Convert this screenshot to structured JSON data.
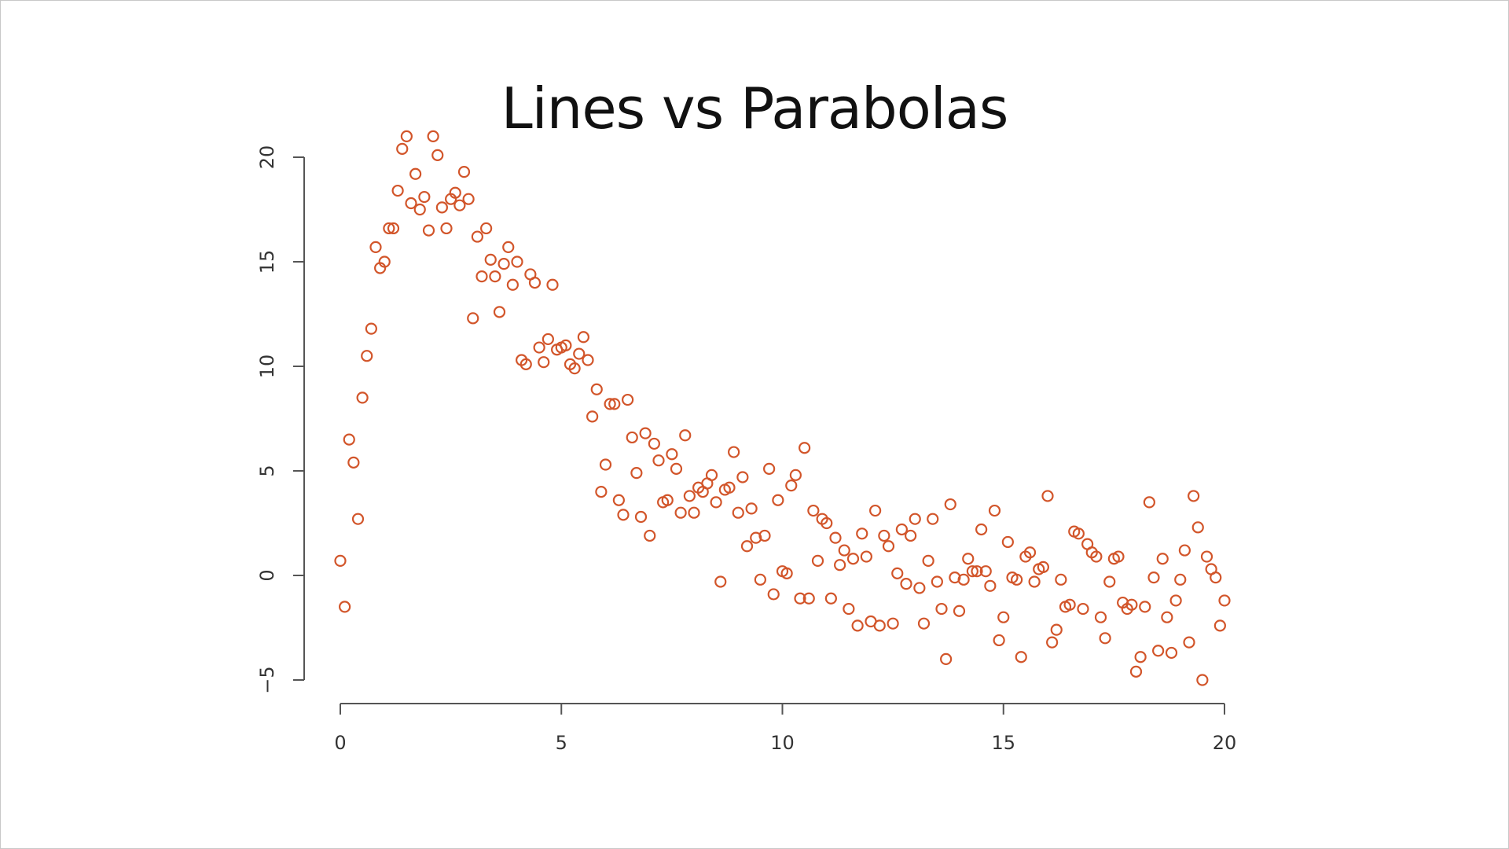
{
  "chart_data": {
    "type": "scatter",
    "title": "Lines vs Parabolas",
    "xlabel": "",
    "ylabel": "",
    "xlim": [
      0,
      20
    ],
    "ylim": [
      -5,
      20
    ],
    "x_ticks": [
      "0",
      "5",
      "10",
      "15",
      "20"
    ],
    "y_ticks": [
      "-5",
      "0",
      "5",
      "10",
      "15",
      "20"
    ],
    "grid": false,
    "marker_color": "#D2552A",
    "series": [
      {
        "points": [
          [
            0.0,
            0.7
          ],
          [
            0.1,
            -1.5
          ],
          [
            0.2,
            6.5
          ],
          [
            0.3,
            5.4
          ],
          [
            0.4,
            2.7
          ],
          [
            0.5,
            8.5
          ],
          [
            0.6,
            10.5
          ],
          [
            0.7,
            11.8
          ],
          [
            0.8,
            15.7
          ],
          [
            0.9,
            14.7
          ],
          [
            1.0,
            15.0
          ],
          [
            1.1,
            16.6
          ],
          [
            1.2,
            16.6
          ],
          [
            1.3,
            18.4
          ],
          [
            1.4,
            20.4
          ],
          [
            1.5,
            21.0
          ],
          [
            1.6,
            17.8
          ],
          [
            1.7,
            19.2
          ],
          [
            1.8,
            17.5
          ],
          [
            1.9,
            18.1
          ],
          [
            2.0,
            16.5
          ],
          [
            2.1,
            21.0
          ],
          [
            2.2,
            20.1
          ],
          [
            2.3,
            17.6
          ],
          [
            2.4,
            16.6
          ],
          [
            2.5,
            18.0
          ],
          [
            2.6,
            18.3
          ],
          [
            2.7,
            17.7
          ],
          [
            2.8,
            19.3
          ],
          [
            2.9,
            18.0
          ],
          [
            3.0,
            12.3
          ],
          [
            3.1,
            16.2
          ],
          [
            3.2,
            14.3
          ],
          [
            3.3,
            16.6
          ],
          [
            3.4,
            15.1
          ],
          [
            3.5,
            14.3
          ],
          [
            3.6,
            12.6
          ],
          [
            3.7,
            14.9
          ],
          [
            3.8,
            15.7
          ],
          [
            3.9,
            13.9
          ],
          [
            4.0,
            15.0
          ],
          [
            4.1,
            10.3
          ],
          [
            4.2,
            10.1
          ],
          [
            4.3,
            14.4
          ],
          [
            4.4,
            14.0
          ],
          [
            4.5,
            10.9
          ],
          [
            4.6,
            10.2
          ],
          [
            4.7,
            11.3
          ],
          [
            4.8,
            13.9
          ],
          [
            4.9,
            10.8
          ],
          [
            5.0,
            10.9
          ],
          [
            5.1,
            11.0
          ],
          [
            5.2,
            10.1
          ],
          [
            5.3,
            9.9
          ],
          [
            5.4,
            10.6
          ],
          [
            5.5,
            11.4
          ],
          [
            5.6,
            10.3
          ],
          [
            5.7,
            7.6
          ],
          [
            5.8,
            8.9
          ],
          [
            5.9,
            4.0
          ],
          [
            6.0,
            5.3
          ],
          [
            6.1,
            8.2
          ],
          [
            6.2,
            8.2
          ],
          [
            6.3,
            3.6
          ],
          [
            6.4,
            2.9
          ],
          [
            6.5,
            8.4
          ],
          [
            6.6,
            6.6
          ],
          [
            6.7,
            4.9
          ],
          [
            6.8,
            2.8
          ],
          [
            6.9,
            6.8
          ],
          [
            7.0,
            1.9
          ],
          [
            7.1,
            6.3
          ],
          [
            7.2,
            5.5
          ],
          [
            7.3,
            3.5
          ],
          [
            7.4,
            3.6
          ],
          [
            7.5,
            5.8
          ],
          [
            7.6,
            5.1
          ],
          [
            7.7,
            3.0
          ],
          [
            7.8,
            6.7
          ],
          [
            7.9,
            3.8
          ],
          [
            8.0,
            3.0
          ],
          [
            8.1,
            4.2
          ],
          [
            8.2,
            4.0
          ],
          [
            8.3,
            4.4
          ],
          [
            8.4,
            4.8
          ],
          [
            8.5,
            3.5
          ],
          [
            8.6,
            -0.3
          ],
          [
            8.7,
            4.1
          ],
          [
            8.8,
            4.2
          ],
          [
            8.9,
            5.9
          ],
          [
            9.0,
            3.0
          ],
          [
            9.1,
            4.7
          ],
          [
            9.2,
            1.4
          ],
          [
            9.3,
            3.2
          ],
          [
            9.4,
            1.8
          ],
          [
            9.5,
            -0.2
          ],
          [
            9.6,
            1.9
          ],
          [
            9.7,
            5.1
          ],
          [
            9.8,
            -0.9
          ],
          [
            9.9,
            3.6
          ],
          [
            10.0,
            0.2
          ],
          [
            10.1,
            0.1
          ],
          [
            10.2,
            4.3
          ],
          [
            10.3,
            4.8
          ],
          [
            10.4,
            -1.1
          ],
          [
            10.5,
            6.1
          ],
          [
            10.6,
            -1.1
          ],
          [
            10.7,
            3.1
          ],
          [
            10.8,
            0.7
          ],
          [
            10.9,
            2.7
          ],
          [
            11.0,
            2.5
          ],
          [
            11.1,
            -1.1
          ],
          [
            11.2,
            1.8
          ],
          [
            11.3,
            0.5
          ],
          [
            11.4,
            1.2
          ],
          [
            11.5,
            -1.6
          ],
          [
            11.6,
            0.8
          ],
          [
            11.7,
            -2.4
          ],
          [
            11.8,
            2.0
          ],
          [
            11.9,
            0.9
          ],
          [
            12.0,
            -2.2
          ],
          [
            12.1,
            3.1
          ],
          [
            12.2,
            -2.4
          ],
          [
            12.3,
            1.9
          ],
          [
            12.4,
            1.4
          ],
          [
            12.5,
            -2.3
          ],
          [
            12.6,
            0.1
          ],
          [
            12.7,
            2.2
          ],
          [
            12.8,
            -0.4
          ],
          [
            12.9,
            1.9
          ],
          [
            13.0,
            2.7
          ],
          [
            13.1,
            -0.6
          ],
          [
            13.2,
            -2.3
          ],
          [
            13.3,
            0.7
          ],
          [
            13.4,
            2.7
          ],
          [
            13.5,
            -0.3
          ],
          [
            13.6,
            -1.6
          ],
          [
            13.7,
            -4.0
          ],
          [
            13.8,
            3.4
          ],
          [
            13.9,
            -0.1
          ],
          [
            14.0,
            -1.7
          ],
          [
            14.1,
            -0.2
          ],
          [
            14.2,
            0.8
          ],
          [
            14.3,
            0.2
          ],
          [
            14.4,
            0.2
          ],
          [
            14.5,
            2.2
          ],
          [
            14.6,
            0.2
          ],
          [
            14.7,
            -0.5
          ],
          [
            14.8,
            3.1
          ],
          [
            14.9,
            -3.1
          ],
          [
            15.0,
            -2.0
          ],
          [
            15.1,
            1.6
          ],
          [
            15.2,
            -0.1
          ],
          [
            15.3,
            -0.2
          ],
          [
            15.4,
            -3.9
          ],
          [
            15.5,
            0.9
          ],
          [
            15.6,
            1.1
          ],
          [
            15.7,
            -0.3
          ],
          [
            15.8,
            0.3
          ],
          [
            15.9,
            0.4
          ],
          [
            16.0,
            3.8
          ],
          [
            16.1,
            -3.2
          ],
          [
            16.2,
            -2.6
          ],
          [
            16.3,
            -0.2
          ],
          [
            16.4,
            -1.5
          ],
          [
            16.5,
            -1.4
          ],
          [
            16.6,
            2.1
          ],
          [
            16.7,
            2.0
          ],
          [
            16.8,
            -1.6
          ],
          [
            16.9,
            1.5
          ],
          [
            17.0,
            1.1
          ],
          [
            17.1,
            0.9
          ],
          [
            17.2,
            -2.0
          ],
          [
            17.3,
            -3.0
          ],
          [
            17.4,
            -0.3
          ],
          [
            17.5,
            0.8
          ],
          [
            17.6,
            0.9
          ],
          [
            17.7,
            -1.3
          ],
          [
            17.8,
            -1.6
          ],
          [
            17.9,
            -1.4
          ],
          [
            18.0,
            -4.6
          ],
          [
            18.1,
            -3.9
          ],
          [
            18.2,
            -1.5
          ],
          [
            18.3,
            3.5
          ],
          [
            18.4,
            -0.1
          ],
          [
            18.5,
            -3.6
          ],
          [
            18.6,
            0.8
          ],
          [
            18.7,
            -2.0
          ],
          [
            18.8,
            -3.7
          ],
          [
            18.9,
            -1.2
          ],
          [
            19.0,
            -0.2
          ],
          [
            19.1,
            1.2
          ],
          [
            19.2,
            -3.2
          ],
          [
            19.3,
            3.8
          ],
          [
            19.4,
            2.3
          ],
          [
            19.5,
            -5.0
          ],
          [
            19.6,
            0.9
          ],
          [
            19.7,
            0.3
          ],
          [
            19.8,
            -0.1
          ],
          [
            19.9,
            -2.4
          ],
          [
            20.0,
            -1.2
          ]
        ]
      }
    ]
  }
}
